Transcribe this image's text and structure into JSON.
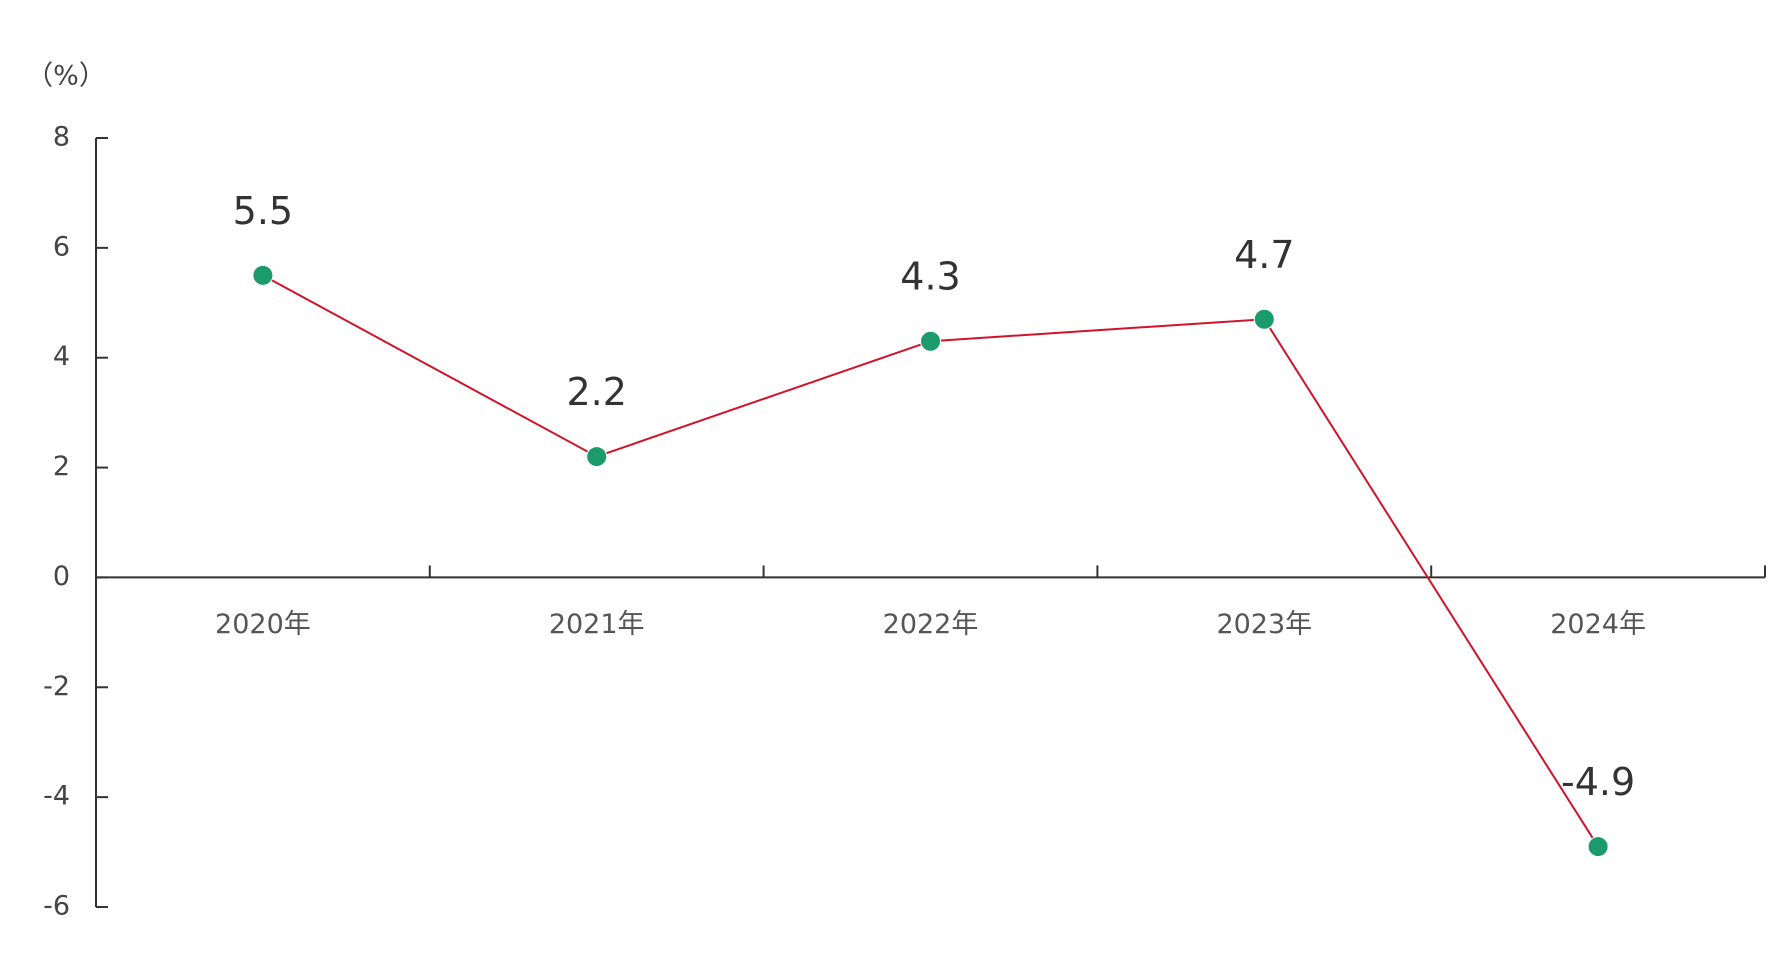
{
  "chart_data": {
    "type": "line",
    "y_unit_label": "（%）",
    "categories": [
      "2020年",
      "2021年",
      "2022年",
      "2023年",
      "2024年"
    ],
    "values": [
      5.5,
      2.2,
      4.3,
      4.7,
      -4.9
    ],
    "color": "#d0132b",
    "marker_color": "#1b9a6b",
    "ylim": [
      -6,
      8
    ],
    "yticks": [
      -6,
      -4,
      -2,
      0,
      2,
      4,
      6,
      8
    ]
  }
}
